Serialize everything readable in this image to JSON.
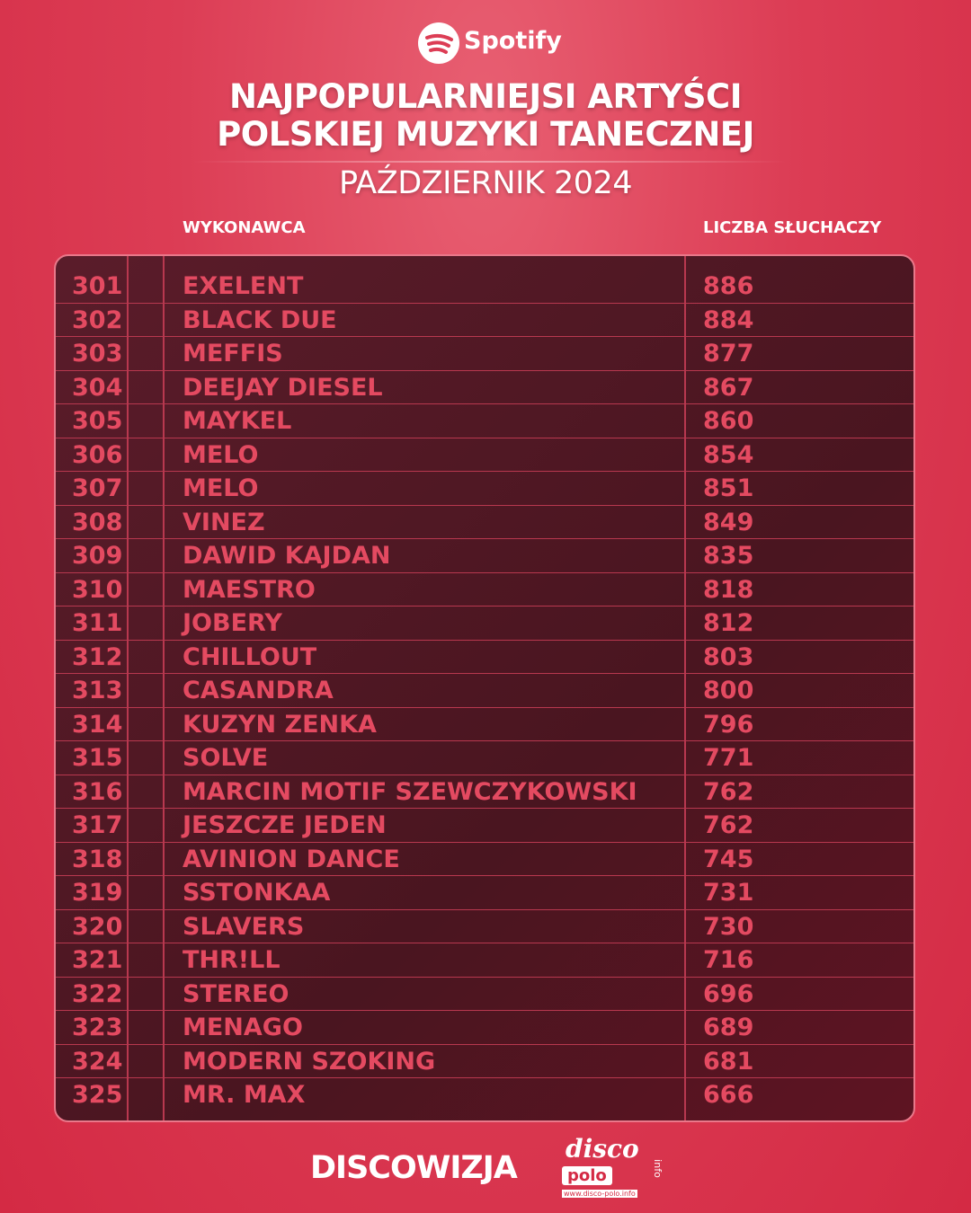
{
  "header": {
    "brand": "Spotify",
    "title_lines": [
      "NAJPOPULARNIEJSI ARTYŚCI",
      "POLSKIEJ MUZYKI TANECZNEJ"
    ],
    "subtitle": "PAŹDZIERNIK 2024"
  },
  "table": {
    "columns": [
      "WYKONAWCA",
      "LICZBA SŁUCHACZY"
    ],
    "rows": [
      [
        301,
        "EXELENT",
        886
      ],
      [
        302,
        "BLACK DUE",
        884
      ],
      [
        303,
        "MEFFIS",
        877
      ],
      [
        304,
        "DEEJAY DIESEL",
        867
      ],
      [
        305,
        "MAYKEL",
        860
      ],
      [
        306,
        "MELO",
        854
      ],
      [
        307,
        "MELO",
        851
      ],
      [
        308,
        "VINEZ",
        849
      ],
      [
        309,
        "DAWID KAJDAN",
        835
      ],
      [
        310,
        "MAESTRO",
        818
      ],
      [
        311,
        "JOBERY",
        812
      ],
      [
        312,
        "CHILLOUT",
        803
      ],
      [
        313,
        "CASANDRA",
        800
      ],
      [
        314,
        "KUZYN ZENKA",
        796
      ],
      [
        315,
        "SOLVE",
        771
      ],
      [
        316,
        "MARCIN MOTIF SZEWCZYKOWSKI",
        762
      ],
      [
        317,
        "JESZCZE JEDEN",
        762
      ],
      [
        318,
        "AVINION DANCE",
        745
      ],
      [
        319,
        "SSTONKAA",
        731
      ],
      [
        320,
        "SLAVERS",
        730
      ],
      [
        321,
        "THR!LL",
        716
      ],
      [
        322,
        "STEREO",
        696
      ],
      [
        323,
        "MENAGO",
        689
      ],
      [
        324,
        "MODERN SZOKING",
        681
      ],
      [
        325,
        "MR. MAX",
        666
      ]
    ]
  },
  "footer": {
    "brand": "DISCOWIZJA",
    "logo_top": "disco",
    "logo_bottom": "polo",
    "logo_side": "info",
    "logo_url": "www.disco-polo.info"
  }
}
